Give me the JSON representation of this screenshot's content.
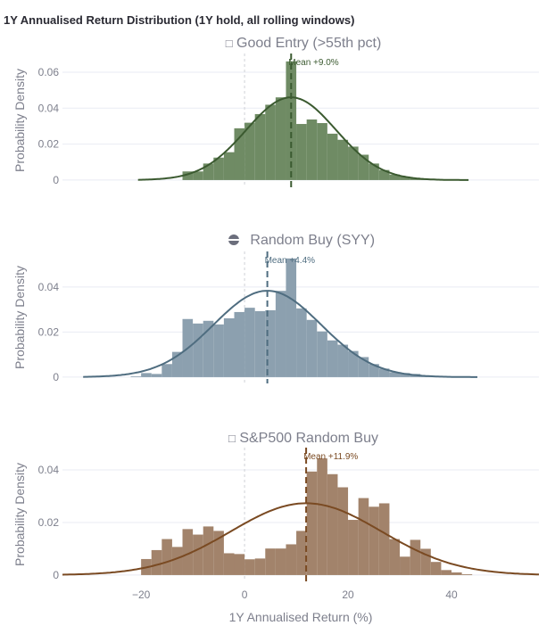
{
  "chart_data": {
    "title": "1Y Annualised Return Distribution (1Y hold, all rolling windows)",
    "xlabel": "1Y Annualised Return (%)",
    "xlim": [
      -35.2,
      56.9
    ],
    "xticks": [
      -20,
      0,
      20,
      40
    ],
    "xtick_labels": [
      "−20",
      "0",
      "20",
      "40"
    ],
    "grid": true,
    "panels": [
      {
        "type": "bar",
        "title": "Good Entry (>55th pct)",
        "title_icon": "missing-glyph-box",
        "title_prefix": "□",
        "ylabel": "Probability Density",
        "ylim": [
          -0.004,
          0.0704
        ],
        "yticks": [
          0,
          0.02,
          0.04,
          0.06
        ],
        "ytick_labels": [
          "0",
          "0.02",
          "0.04",
          "0.06"
        ],
        "bar_color": "#6f8b64",
        "line_color": "#3b5a30",
        "bin_width": 2,
        "bin_starts": [
          -12,
          -10,
          -8,
          -6,
          -4,
          -2,
          0,
          2,
          4,
          6,
          8,
          10,
          12,
          14,
          16,
          18,
          20,
          22,
          24,
          26,
          28,
          30,
          32,
          34
        ],
        "values": [
          0.0048,
          0.0048,
          0.0092,
          0.0125,
          0.0155,
          0.0288,
          0.0319,
          0.0367,
          0.0419,
          0.046,
          0.066,
          0.0312,
          0.0337,
          0.0317,
          0.0258,
          0.0224,
          0.0186,
          0.0141,
          0.0092,
          0.0056,
          0.0031,
          0.002,
          0.001,
          0.0006
        ],
        "fit": {
          "mean": 9.0,
          "sd": 8.67,
          "x_range": [
            -20.6,
            43.3
          ]
        },
        "mean_label": "Mean +9.0%"
      },
      {
        "type": "bar",
        "title": "Random Buy (SYY)",
        "title_icon": "half-circle-icon",
        "ylabel": "Probability Density",
        "ylim": [
          -0.0028,
          0.0558
        ],
        "yticks": [
          0,
          0.02,
          0.04
        ],
        "ytick_labels": [
          "0",
          "0.02",
          "0.04"
        ],
        "bar_color": "#8ca0af",
        "line_color": "#4f6d80",
        "bin_width": 2,
        "bin_starts": [
          -22,
          -20,
          -18,
          -16,
          -14,
          -12,
          -10,
          -8,
          -6,
          -4,
          -2,
          0,
          2,
          4,
          6,
          8,
          10,
          12,
          14,
          16,
          18,
          20,
          22,
          24,
          26,
          28,
          30,
          32,
          34,
          36
        ],
        "values": [
          0.0003,
          0.0018,
          0.0014,
          0.0058,
          0.0112,
          0.0258,
          0.0238,
          0.025,
          0.0234,
          0.0261,
          0.0289,
          0.0308,
          0.0293,
          0.0297,
          0.0383,
          0.0527,
          0.0305,
          0.0254,
          0.0203,
          0.0163,
          0.0144,
          0.0116,
          0.0089,
          0.0058,
          0.0038,
          0.0022,
          0.0018,
          0.0014,
          0.0007,
          0.0003
        ],
        "fit": {
          "mean": 4.4,
          "sd": 10.4,
          "x_range": [
            -31.2,
            45.0
          ]
        },
        "mean_label": "Mean +4.4%"
      },
      {
        "type": "bar",
        "title": "S&P500 Random Buy",
        "title_icon": "missing-glyph-box",
        "title_prefix": "□",
        "ylabel": "Probability Density",
        "ylim": [
          -0.0024,
          0.0485
        ],
        "yticks": [
          0,
          0.02,
          0.04
        ],
        "ytick_labels": [
          "0",
          "0.02",
          "0.04"
        ],
        "bar_color": "#a2836b",
        "line_color": "#7a4a22",
        "bin_width": 2,
        "bin_starts": [
          -20,
          -18,
          -16,
          -14,
          -12,
          -10,
          -8,
          -6,
          -4,
          -2,
          0,
          2,
          4,
          6,
          8,
          10,
          12,
          14,
          16,
          18,
          20,
          22,
          24,
          26,
          28,
          30,
          32,
          34,
          36,
          38,
          40,
          42
        ],
        "values": [
          0.0061,
          0.0095,
          0.0137,
          0.0107,
          0.0175,
          0.0154,
          0.0185,
          0.0168,
          0.0083,
          0.008,
          0.006,
          0.0063,
          0.0101,
          0.0101,
          0.0117,
          0.0168,
          0.0394,
          0.0444,
          0.0384,
          0.0334,
          0.021,
          0.0293,
          0.026,
          0.0273,
          0.0137,
          0.007,
          0.0134,
          0.01,
          0.005,
          0.0019,
          0.001,
          0.0003
        ],
        "fit": {
          "mean": 11.9,
          "sd": 14.6,
          "x_range": [
            -35.2,
            56.9
          ]
        },
        "mean_label": "Mean +11.9%"
      }
    ]
  }
}
